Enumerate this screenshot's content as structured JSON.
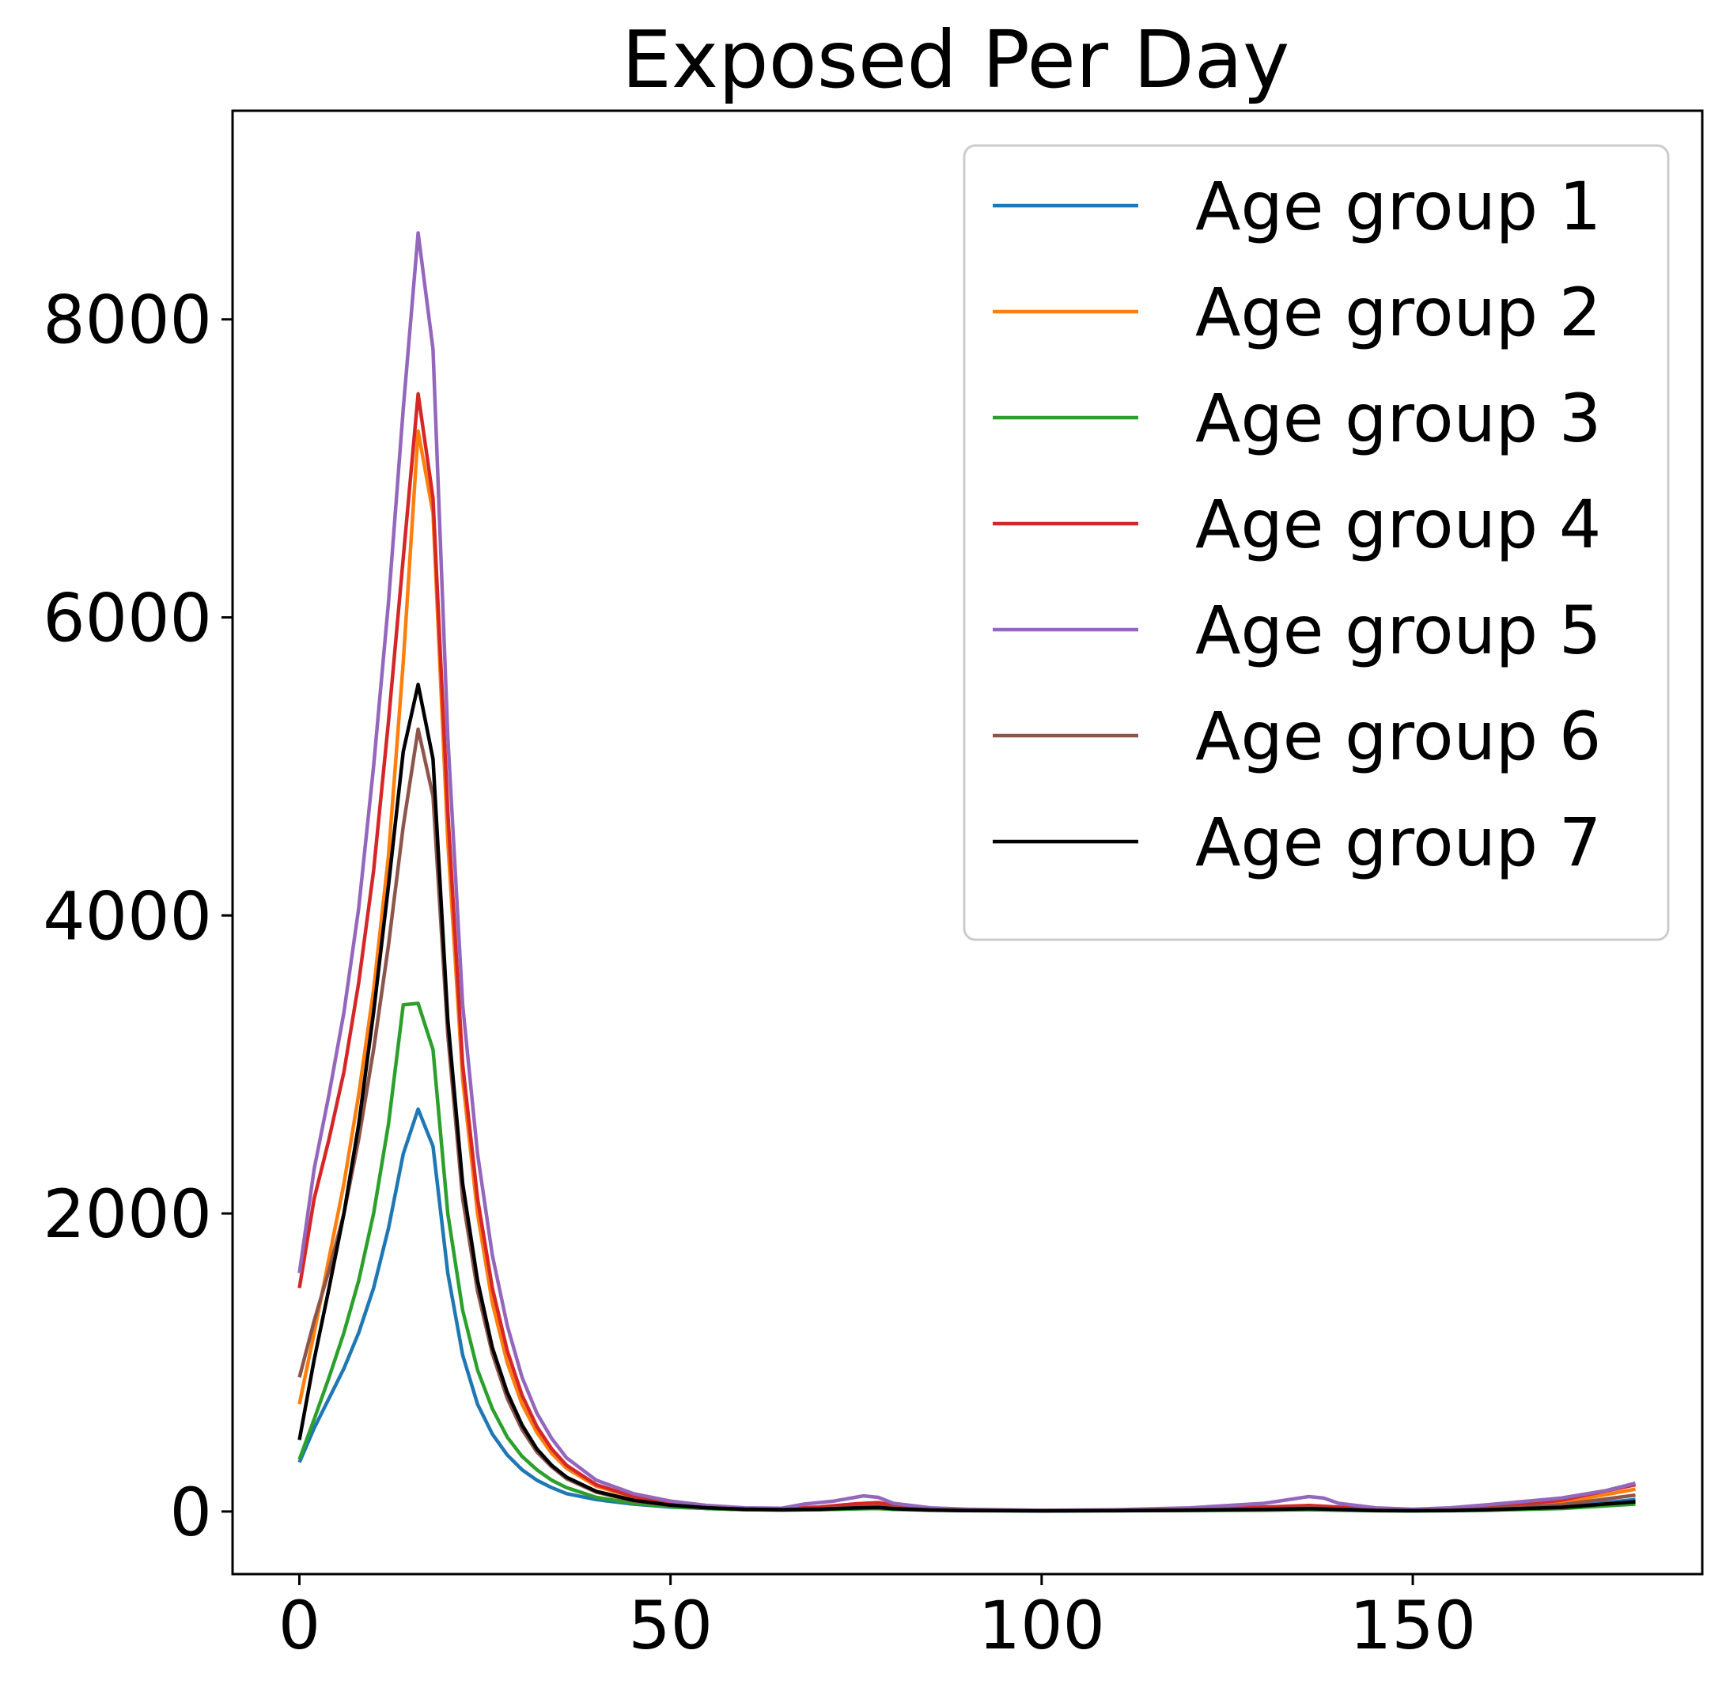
{
  "chart_data": {
    "type": "line",
    "title": "Exposed Per Day",
    "xlabel": "",
    "ylabel": "",
    "xlim": [
      -9,
      189
    ],
    "ylim": [
      -420,
      9400
    ],
    "xticks": [
      0,
      50,
      100,
      150
    ],
    "yticks": [
      0,
      2000,
      4000,
      6000,
      8000
    ],
    "grid": false,
    "legend_position": "top-right",
    "series": [
      {
        "name": "Age group 1",
        "color": "#1f77b4",
        "points": [
          [
            0,
            330
          ],
          [
            2,
            560
          ],
          [
            4,
            760
          ],
          [
            6,
            960
          ],
          [
            8,
            1200
          ],
          [
            10,
            1500
          ],
          [
            12,
            1900
          ],
          [
            14,
            2400
          ],
          [
            16,
            2700
          ],
          [
            18,
            2450
          ],
          [
            20,
            1600
          ],
          [
            22,
            1050
          ],
          [
            24,
            720
          ],
          [
            26,
            520
          ],
          [
            28,
            380
          ],
          [
            30,
            280
          ],
          [
            32,
            210
          ],
          [
            34,
            160
          ],
          [
            36,
            120
          ],
          [
            40,
            80
          ],
          [
            45,
            50
          ],
          [
            50,
            30
          ],
          [
            55,
            20
          ],
          [
            60,
            12
          ],
          [
            65,
            10
          ],
          [
            70,
            12
          ],
          [
            75,
            18
          ],
          [
            78,
            22
          ],
          [
            80,
            15
          ],
          [
            85,
            10
          ],
          [
            90,
            6
          ],
          [
            100,
            5
          ],
          [
            110,
            6
          ],
          [
            120,
            8
          ],
          [
            130,
            10
          ],
          [
            136,
            14
          ],
          [
            140,
            10
          ],
          [
            145,
            6
          ],
          [
            150,
            5
          ],
          [
            155,
            6
          ],
          [
            160,
            10
          ],
          [
            170,
            30
          ],
          [
            180,
            80
          ]
        ]
      },
      {
        "name": "Age group 2",
        "color": "#ff7f0e",
        "points": [
          [
            0,
            720
          ],
          [
            2,
            1200
          ],
          [
            4,
            1700
          ],
          [
            6,
            2200
          ],
          [
            8,
            2800
          ],
          [
            10,
            3500
          ],
          [
            12,
            4400
          ],
          [
            14,
            5700
          ],
          [
            16,
            7250
          ],
          [
            18,
            6700
          ],
          [
            20,
            4500
          ],
          [
            22,
            2900
          ],
          [
            24,
            2000
          ],
          [
            26,
            1400
          ],
          [
            28,
            1000
          ],
          [
            30,
            720
          ],
          [
            32,
            530
          ],
          [
            34,
            390
          ],
          [
            36,
            290
          ],
          [
            40,
            170
          ],
          [
            45,
            95
          ],
          [
            50,
            55
          ],
          [
            55,
            32
          ],
          [
            60,
            20
          ],
          [
            65,
            18
          ],
          [
            70,
            25
          ],
          [
            75,
            45
          ],
          [
            78,
            50
          ],
          [
            80,
            35
          ],
          [
            85,
            18
          ],
          [
            90,
            10
          ],
          [
            100,
            6
          ],
          [
            110,
            8
          ],
          [
            120,
            14
          ],
          [
            130,
            22
          ],
          [
            136,
            30
          ],
          [
            140,
            22
          ],
          [
            145,
            12
          ],
          [
            150,
            8
          ],
          [
            155,
            12
          ],
          [
            160,
            25
          ],
          [
            170,
            60
          ],
          [
            180,
            150
          ]
        ]
      },
      {
        "name": "Age group 3",
        "color": "#2ca02c",
        "points": [
          [
            0,
            350
          ],
          [
            2,
            620
          ],
          [
            4,
            900
          ],
          [
            6,
            1200
          ],
          [
            8,
            1550
          ],
          [
            10,
            2000
          ],
          [
            12,
            2600
          ],
          [
            14,
            3400
          ],
          [
            16,
            3410
          ],
          [
            18,
            3100
          ],
          [
            20,
            2000
          ],
          [
            22,
            1350
          ],
          [
            24,
            950
          ],
          [
            26,
            690
          ],
          [
            28,
            500
          ],
          [
            30,
            370
          ],
          [
            32,
            280
          ],
          [
            34,
            210
          ],
          [
            36,
            160
          ],
          [
            40,
            95
          ],
          [
            45,
            55
          ],
          [
            50,
            32
          ],
          [
            55,
            20
          ],
          [
            60,
            12
          ],
          [
            65,
            10
          ],
          [
            70,
            12
          ],
          [
            75,
            18
          ],
          [
            78,
            20
          ],
          [
            80,
            14
          ],
          [
            85,
            9
          ],
          [
            90,
            6
          ],
          [
            100,
            4
          ],
          [
            110,
            5
          ],
          [
            120,
            7
          ],
          [
            130,
            9
          ],
          [
            136,
            12
          ],
          [
            140,
            9
          ],
          [
            145,
            5
          ],
          [
            150,
            4
          ],
          [
            155,
            5
          ],
          [
            160,
            8
          ],
          [
            170,
            20
          ],
          [
            180,
            50
          ]
        ]
      },
      {
        "name": "Age group 4",
        "color": "#d62728",
        "points": [
          [
            0,
            1500
          ],
          [
            2,
            2100
          ],
          [
            4,
            2500
          ],
          [
            6,
            2950
          ],
          [
            8,
            3550
          ],
          [
            10,
            4300
          ],
          [
            12,
            5300
          ],
          [
            14,
            6400
          ],
          [
            16,
            7500
          ],
          [
            18,
            6800
          ],
          [
            20,
            4700
          ],
          [
            22,
            3000
          ],
          [
            24,
            2100
          ],
          [
            26,
            1500
          ],
          [
            28,
            1080
          ],
          [
            30,
            780
          ],
          [
            32,
            570
          ],
          [
            34,
            420
          ],
          [
            36,
            310
          ],
          [
            40,
            180
          ],
          [
            45,
            100
          ],
          [
            50,
            60
          ],
          [
            55,
            35
          ],
          [
            60,
            22
          ],
          [
            65,
            20
          ],
          [
            70,
            30
          ],
          [
            75,
            52
          ],
          [
            78,
            60
          ],
          [
            80,
            42
          ],
          [
            85,
            20
          ],
          [
            90,
            12
          ],
          [
            100,
            7
          ],
          [
            110,
            10
          ],
          [
            120,
            18
          ],
          [
            130,
            30
          ],
          [
            136,
            40
          ],
          [
            140,
            30
          ],
          [
            145,
            15
          ],
          [
            150,
            10
          ],
          [
            155,
            15
          ],
          [
            160,
            30
          ],
          [
            170,
            75
          ],
          [
            180,
            180
          ]
        ]
      },
      {
        "name": "Age group 5",
        "color": "#9467bd",
        "points": [
          [
            0,
            1600
          ],
          [
            2,
            2300
          ],
          [
            4,
            2800
          ],
          [
            6,
            3350
          ],
          [
            8,
            4050
          ],
          [
            10,
            5000
          ],
          [
            12,
            6100
          ],
          [
            14,
            7400
          ],
          [
            16,
            8580
          ],
          [
            18,
            7800
          ],
          [
            20,
            5200
          ],
          [
            22,
            3400
          ],
          [
            24,
            2400
          ],
          [
            26,
            1720
          ],
          [
            28,
            1250
          ],
          [
            30,
            900
          ],
          [
            32,
            660
          ],
          [
            34,
            490
          ],
          [
            36,
            360
          ],
          [
            40,
            210
          ],
          [
            45,
            120
          ],
          [
            50,
            70
          ],
          [
            55,
            40
          ],
          [
            60,
            25
          ],
          [
            65,
            22
          ],
          [
            68,
            50
          ],
          [
            72,
            70
          ],
          [
            76,
            105
          ],
          [
            78,
            95
          ],
          [
            80,
            55
          ],
          [
            85,
            25
          ],
          [
            90,
            15
          ],
          [
            100,
            8
          ],
          [
            110,
            12
          ],
          [
            120,
            25
          ],
          [
            130,
            55
          ],
          [
            136,
            100
          ],
          [
            138,
            90
          ],
          [
            140,
            55
          ],
          [
            145,
            25
          ],
          [
            150,
            15
          ],
          [
            155,
            25
          ],
          [
            160,
            45
          ],
          [
            170,
            90
          ],
          [
            176,
            140
          ],
          [
            180,
            190
          ]
        ]
      },
      {
        "name": "Age group 6",
        "color": "#8c564b",
        "points": [
          [
            0,
            900
          ],
          [
            2,
            1280
          ],
          [
            4,
            1620
          ],
          [
            6,
            2000
          ],
          [
            8,
            2500
          ],
          [
            10,
            3100
          ],
          [
            12,
            3800
          ],
          [
            14,
            4600
          ],
          [
            16,
            5250
          ],
          [
            18,
            4800
          ],
          [
            20,
            3200
          ],
          [
            22,
            2100
          ],
          [
            24,
            1480
          ],
          [
            26,
            1060
          ],
          [
            28,
            760
          ],
          [
            30,
            550
          ],
          [
            32,
            400
          ],
          [
            34,
            300
          ],
          [
            36,
            220
          ],
          [
            40,
            130
          ],
          [
            45,
            72
          ],
          [
            50,
            42
          ],
          [
            55,
            25
          ],
          [
            60,
            15
          ],
          [
            65,
            13
          ],
          [
            70,
            18
          ],
          [
            75,
            30
          ],
          [
            78,
            34
          ],
          [
            80,
            24
          ],
          [
            85,
            12
          ],
          [
            90,
            8
          ],
          [
            100,
            5
          ],
          [
            110,
            7
          ],
          [
            120,
            12
          ],
          [
            130,
            18
          ],
          [
            136,
            24
          ],
          [
            140,
            18
          ],
          [
            145,
            9
          ],
          [
            150,
            6
          ],
          [
            155,
            9
          ],
          [
            160,
            18
          ],
          [
            170,
            45
          ],
          [
            180,
            110
          ]
        ]
      },
      {
        "name": "Age group 7",
        "color": "#000000",
        "points": [
          [
            0,
            480
          ],
          [
            2,
            1020
          ],
          [
            4,
            1500
          ],
          [
            6,
            2000
          ],
          [
            8,
            2600
          ],
          [
            10,
            3350
          ],
          [
            12,
            4200
          ],
          [
            14,
            5100
          ],
          [
            16,
            5550
          ],
          [
            18,
            5050
          ],
          [
            20,
            3300
          ],
          [
            22,
            2200
          ],
          [
            24,
            1550
          ],
          [
            26,
            1100
          ],
          [
            28,
            800
          ],
          [
            30,
            580
          ],
          [
            32,
            420
          ],
          [
            34,
            310
          ],
          [
            36,
            230
          ],
          [
            40,
            135
          ],
          [
            45,
            75
          ],
          [
            50,
            43
          ],
          [
            55,
            25
          ],
          [
            60,
            15
          ],
          [
            65,
            12
          ],
          [
            70,
            15
          ],
          [
            75,
            24
          ],
          [
            78,
            27
          ],
          [
            80,
            19
          ],
          [
            85,
            10
          ],
          [
            90,
            6
          ],
          [
            100,
            4
          ],
          [
            110,
            5
          ],
          [
            120,
            9
          ],
          [
            130,
            14
          ],
          [
            136,
            19
          ],
          [
            140,
            14
          ],
          [
            145,
            7
          ],
          [
            150,
            5
          ],
          [
            155,
            7
          ],
          [
            160,
            12
          ],
          [
            170,
            28
          ],
          [
            180,
            65
          ]
        ]
      }
    ]
  }
}
